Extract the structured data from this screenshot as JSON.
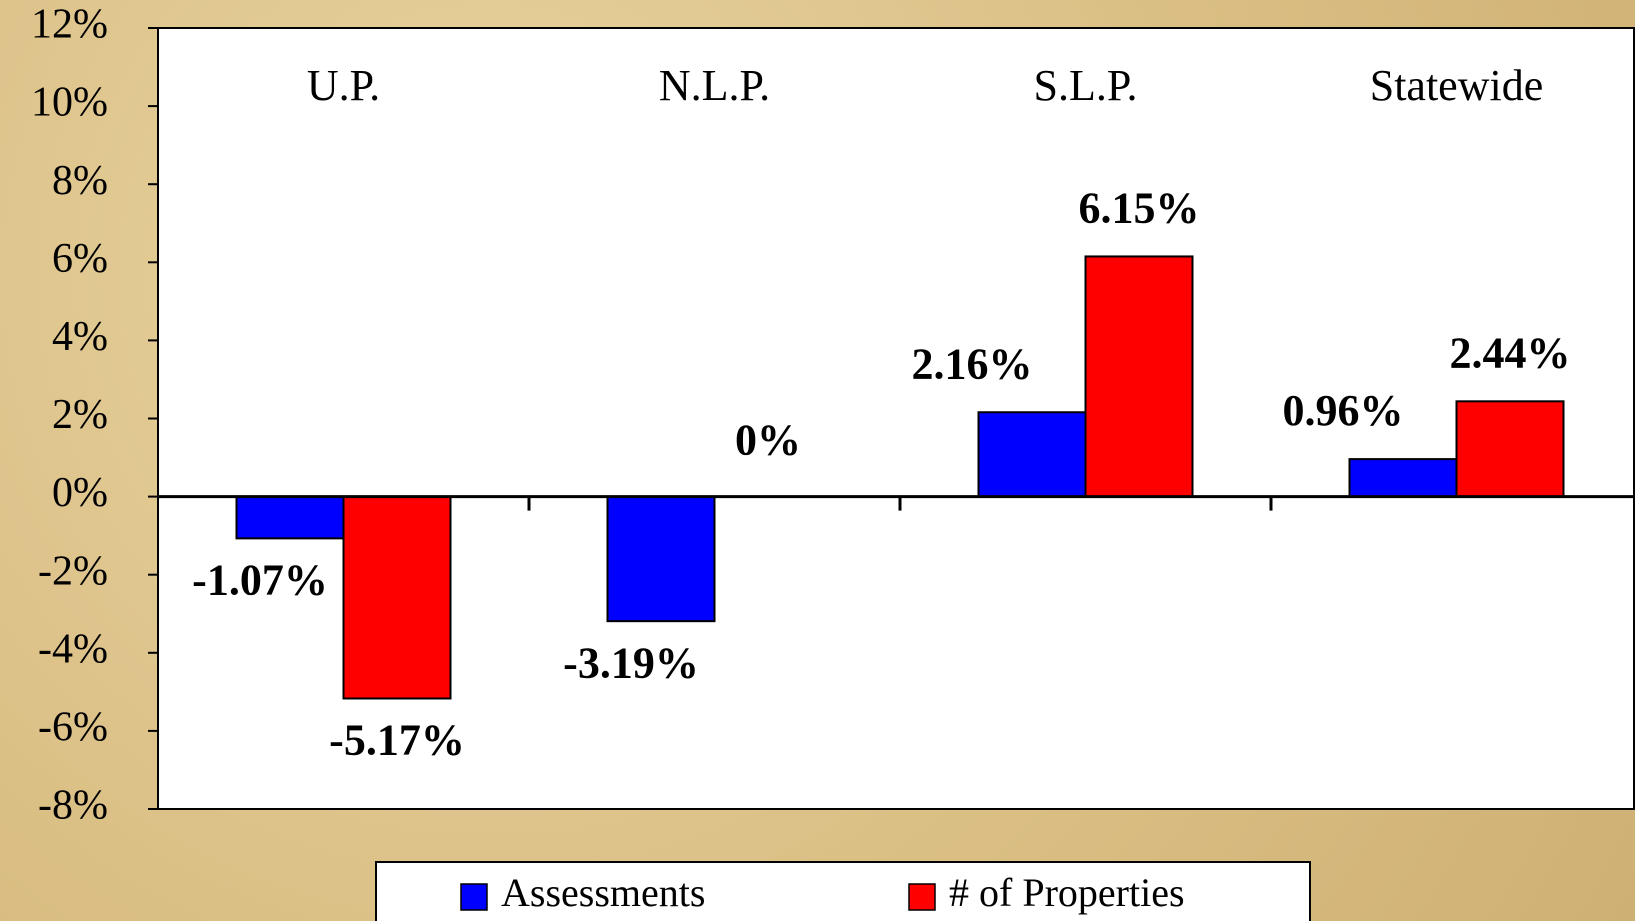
{
  "chart_data": {
    "type": "bar",
    "categories": [
      "U.P.",
      "N.L.P.",
      "S.L.P.",
      "Statewide"
    ],
    "series": [
      {
        "name": "Assessments",
        "color": "#0000ff",
        "values": [
          -1.07,
          -3.19,
          2.16,
          0.96
        ],
        "value_labels": [
          "-1.07%",
          "-3.19%",
          "2.16%",
          "0.96%"
        ]
      },
      {
        "name": "# of Properties",
        "color": "#ff0000",
        "values": [
          -5.17,
          0,
          6.15,
          2.44
        ],
        "value_labels": [
          "-5.17%",
          "0%",
          "6.15%",
          "2.44%"
        ]
      }
    ],
    "ylim": [
      -8,
      12
    ],
    "yticks": [
      {
        "value": -8,
        "label": "-8%"
      },
      {
        "value": -6,
        "label": "-6%"
      },
      {
        "value": -4,
        "label": "-4%"
      },
      {
        "value": -2,
        "label": "-2%"
      },
      {
        "value": 0,
        "label": "0%"
      },
      {
        "value": 2,
        "label": "2%"
      },
      {
        "value": 4,
        "label": "4%"
      },
      {
        "value": 6,
        "label": "6%"
      },
      {
        "value": 8,
        "label": "8%"
      },
      {
        "value": 10,
        "label": "10%"
      },
      {
        "value": 12,
        "label": "12%"
      }
    ],
    "legend": "bottom"
  }
}
